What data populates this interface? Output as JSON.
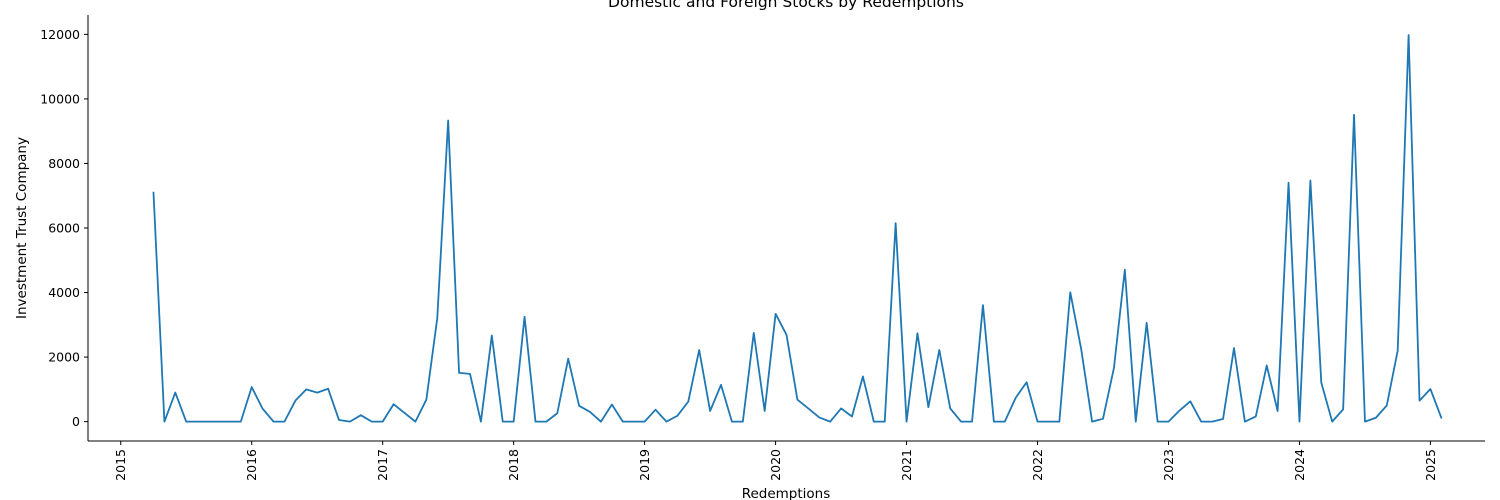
{
  "chart_data": {
    "type": "line",
    "title": "Domestic and Foreign Stocks by Redemptions",
    "xlabel": "Redemptions",
    "ylabel": "Investment Trust Company",
    "x_tick_labels": [
      "2015",
      "2016",
      "2017",
      "2018",
      "2019",
      "2020",
      "2021",
      "2022",
      "2023",
      "2024",
      "2025"
    ],
    "y_tick_labels": [
      "0",
      "2000",
      "4000",
      "6000",
      "8000",
      "10000",
      "12000"
    ],
    "x_range": [
      "2014-10-01",
      "2025-06-01"
    ],
    "y_range": [
      -600,
      12600
    ],
    "grid": false,
    "legend": "none",
    "series_color": "#1f77b4",
    "series": [
      {
        "x": [
          "2015-04",
          "2015-05",
          "2015-06",
          "2015-07",
          "2015-08",
          "2015-09",
          "2015-10",
          "2015-11",
          "2015-12",
          "2016-01",
          "2016-02",
          "2016-03",
          "2016-04",
          "2016-05",
          "2016-06",
          "2016-07",
          "2016-08",
          "2016-09",
          "2016-10",
          "2016-11",
          "2016-12",
          "2017-01",
          "2017-02",
          "2017-03",
          "2017-04",
          "2017-05",
          "2017-06",
          "2017-07",
          "2017-08",
          "2017-09",
          "2017-10",
          "2017-11",
          "2017-12",
          "2018-01",
          "2018-02",
          "2018-03",
          "2018-04",
          "2018-05",
          "2018-06",
          "2018-07",
          "2018-08",
          "2018-09",
          "2018-10",
          "2018-11",
          "2018-12",
          "2019-01",
          "2019-02",
          "2019-03",
          "2019-04",
          "2019-05",
          "2019-06",
          "2019-07",
          "2019-08",
          "2019-09",
          "2019-10",
          "2019-11",
          "2019-12",
          "2020-01",
          "2020-02",
          "2020-03",
          "2020-04",
          "2020-05",
          "2020-06",
          "2020-07",
          "2020-08",
          "2020-09",
          "2020-10",
          "2020-11",
          "2020-12",
          "2021-01",
          "2021-02",
          "2021-03",
          "2021-04",
          "2021-05",
          "2021-06",
          "2021-07",
          "2021-08",
          "2021-09",
          "2021-10",
          "2021-11",
          "2021-12",
          "2022-01",
          "2022-02",
          "2022-03",
          "2022-04",
          "2022-05",
          "2022-06",
          "2022-07",
          "2022-08",
          "2022-09",
          "2022-10",
          "2022-11",
          "2022-12",
          "2023-01",
          "2023-02",
          "2023-03",
          "2023-04",
          "2023-05",
          "2023-06",
          "2023-07",
          "2023-08",
          "2023-09",
          "2023-10",
          "2023-11",
          "2023-12",
          "2024-01",
          "2024-02",
          "2024-03",
          "2024-04",
          "2024-05",
          "2024-06",
          "2024-07",
          "2024-08",
          "2024-09",
          "2024-10",
          "2024-11",
          "2024-12",
          "2025-01",
          "2025-02"
        ],
        "values": [
          7100,
          0,
          900,
          0,
          0,
          0,
          0,
          0,
          0,
          1070,
          400,
          0,
          0,
          650,
          1000,
          900,
          1020,
          50,
          0,
          200,
          0,
          0,
          540,
          270,
          0,
          680,
          3200,
          9330,
          1510,
          1480,
          0,
          2670,
          0,
          0,
          3250,
          0,
          0,
          260,
          1950,
          490,
          300,
          0,
          530,
          0,
          0,
          0,
          370,
          0,
          180,
          620,
          2220,
          330,
          1140,
          0,
          0,
          2750,
          330,
          3340,
          2690,
          680,
          410,
          130,
          0,
          410,
          160,
          1400,
          0,
          0,
          6150,
          0,
          2740,
          450,
          2220,
          410,
          0,
          0,
          3610,
          0,
          0,
          740,
          1220,
          0,
          0,
          0,
          4010,
          2250,
          0,
          90,
          1660,
          4710,
          0,
          3060,
          0,
          0,
          340,
          630,
          0,
          0,
          80,
          2280,
          0,
          160,
          1740,
          330,
          7400,
          0,
          7470,
          1210,
          0,
          380,
          9510,
          0,
          120,
          500,
          2200,
          11980,
          650,
          1010,
          120
        ]
      }
    ]
  }
}
